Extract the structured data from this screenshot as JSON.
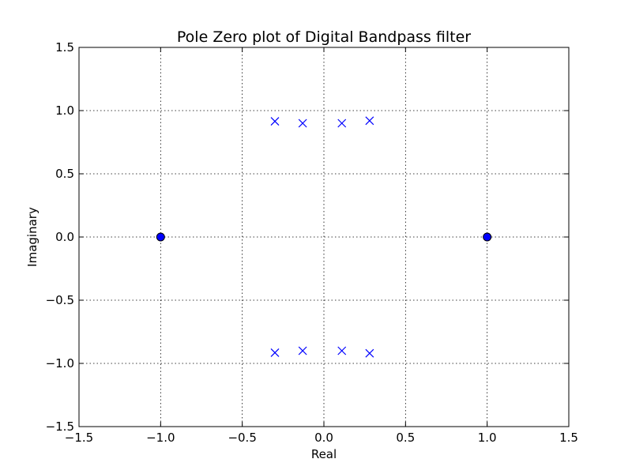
{
  "chart_data": {
    "type": "scatter",
    "title": "Pole Zero plot of Digital Bandpass filter",
    "xlabel": "Real",
    "ylabel": "Imaginary",
    "xlim": [
      -1.5,
      1.5
    ],
    "ylim": [
      -1.5,
      1.5
    ],
    "xticks": [
      -1.5,
      -1.0,
      -0.5,
      0.0,
      0.5,
      1.0,
      1.5
    ],
    "yticks": [
      -1.5,
      -1.0,
      -0.5,
      0.0,
      0.5,
      1.0,
      1.5
    ],
    "xtick_labels": [
      "−1.5",
      "−1.0",
      "−0.5",
      "0.0",
      "0.5",
      "1.0",
      "1.5"
    ],
    "ytick_labels": [
      "−1.5",
      "−1.0",
      "−0.5",
      "0.0",
      "0.5",
      "1.0",
      "1.5"
    ],
    "grid": true,
    "legend": "none",
    "series": [
      {
        "marker": "circle",
        "color": "#0000ff",
        "points": [
          {
            "x": -1.0,
            "y": 0.0
          },
          {
            "x": 1.0,
            "y": 0.0
          }
        ]
      },
      {
        "marker": "x",
        "color": "#0000ff",
        "points": [
          {
            "x": -0.3,
            "y": 0.915
          },
          {
            "x": -0.13,
            "y": 0.9
          },
          {
            "x": 0.11,
            "y": 0.9
          },
          {
            "x": 0.28,
            "y": 0.92
          },
          {
            "x": -0.3,
            "y": -0.915
          },
          {
            "x": -0.13,
            "y": -0.9
          },
          {
            "x": 0.11,
            "y": -0.9
          },
          {
            "x": 0.28,
            "y": -0.92
          }
        ]
      }
    ]
  }
}
